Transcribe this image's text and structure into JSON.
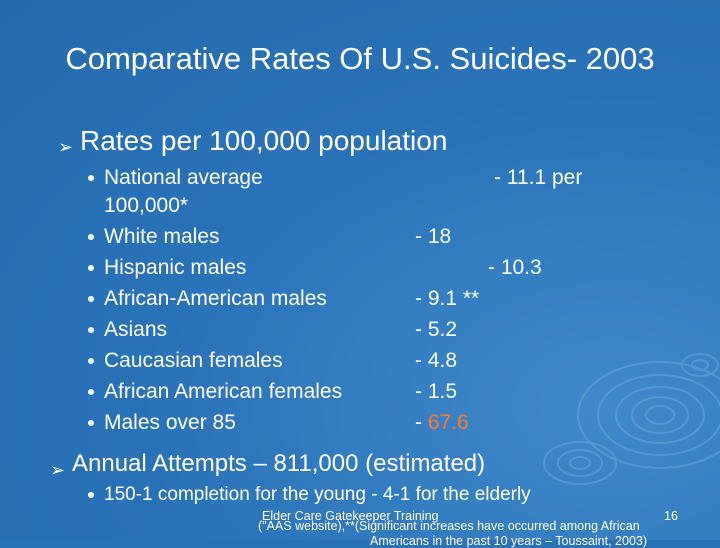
{
  "title": "Comparative Rates Of U.S. Suicides- 2003",
  "bullet1": "Rates per 100,000 population",
  "rates": [
    {
      "label": "National average",
      "value": "- 11.1 per"
    },
    {
      "label": "100,000*",
      "value": ""
    },
    {
      "label": "White males",
      "value": "- 18"
    },
    {
      "label": "Hispanic males",
      "value": "- 10.3"
    },
    {
      "label": "African-American males",
      "value": "- 9.1 **"
    },
    {
      "label": "Asians",
      "value": "- 5.2"
    },
    {
      "label": "Caucasian females",
      "value": "- 4.8"
    },
    {
      "label": "African American females",
      "value": "- 1.5"
    },
    {
      "label": "Males over 85",
      "value_prefix": "- ",
      "value_highlight": "67.6"
    }
  ],
  "bullet2": "Annual Attempts – 811,000 (estimated)",
  "sub_bullet2": "150-1 completion for the young - 4-1 for the elderly",
  "footer": {
    "source": "Elder Care Gatekeeper Training",
    "page": "16",
    "note": "(\"AAS website),**(Significant increases have occurred among African",
    "note_cont": "Americans in the past 10 years – Toussaint, 2003)"
  },
  "colors": {
    "background": "#2a72b8",
    "text": "#ffffff",
    "highlight": "#ff7a2e"
  },
  "icons": {
    "level1": "arrow-bullet-icon",
    "level2": "round-bullet-icon",
    "decoration": "water-ripple-graphic"
  }
}
